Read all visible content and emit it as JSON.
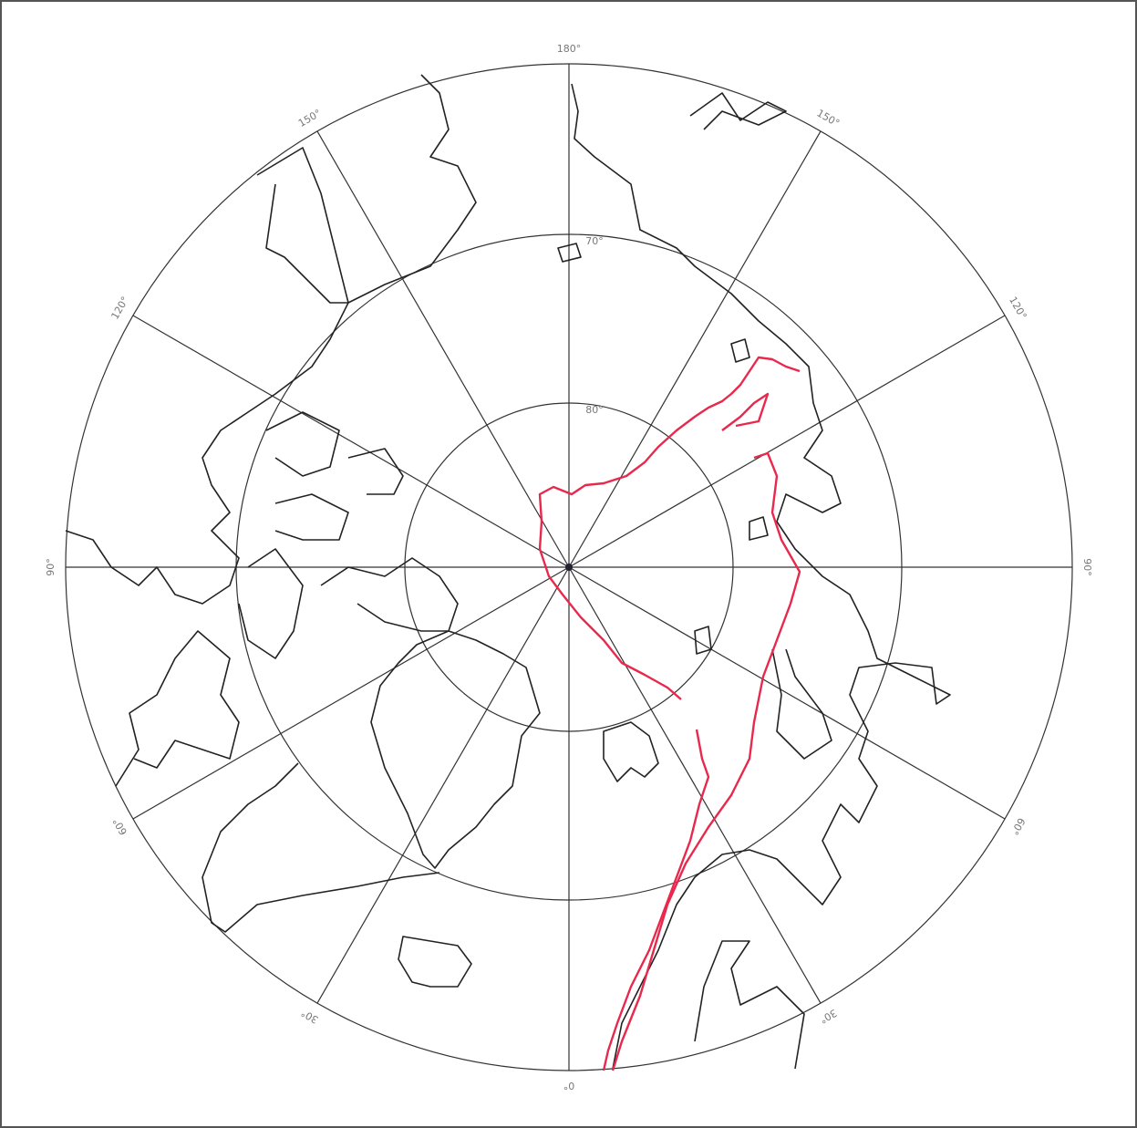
{
  "map": {
    "meridian_labels": [
      "180°",
      "150°",
      "120°",
      "90°",
      "60°",
      "30°",
      "0°",
      "30°",
      "60°",
      "90°",
      "120°",
      "150°"
    ],
    "parallel_labels": [
      "80°",
      "70°"
    ]
  }
}
